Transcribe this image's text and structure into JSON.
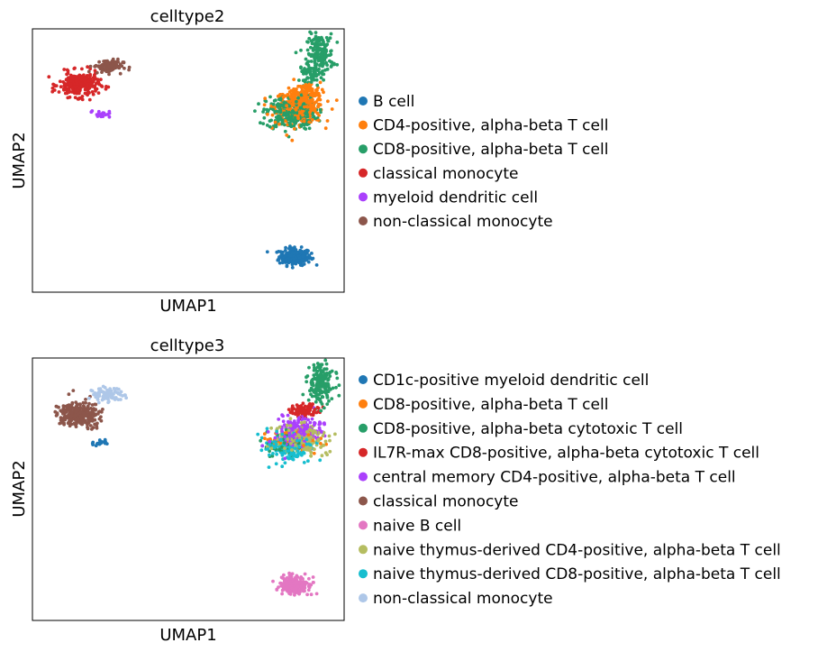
{
  "chart_data": [
    {
      "type": "scatter",
      "title": "celltype2",
      "xlabel": "UMAP1",
      "ylabel": "UMAP2",
      "ticks": false,
      "legend_position": "right",
      "series": [
        {
          "name": "B cell",
          "color": "#1f77b4",
          "clusters": [
            {
              "cx": 7.3,
              "cy": -11.0,
              "sx": 0.8,
              "sy": 0.55,
              "n": 220
            }
          ]
        },
        {
          "name": "CD4-positive, alpha-beta T cell",
          "color": "#ff7f0e",
          "clusters": [
            {
              "cx": 7.6,
              "cy": 3.8,
              "sx": 1.2,
              "sy": 1.1,
              "n": 340
            },
            {
              "cx": 8.3,
              "cy": 5.3,
              "sx": 0.6,
              "sy": 0.6,
              "n": 60
            }
          ]
        },
        {
          "name": "CD8-positive, alpha-beta T cell",
          "color": "#279e68",
          "clusters": [
            {
              "cx": 7.0,
              "cy": 3.2,
              "sx": 1.25,
              "sy": 1.1,
              "n": 300
            },
            {
              "cx": 9.2,
              "cy": 9.0,
              "sx": 0.65,
              "sy": 1.3,
              "n": 170
            },
            {
              "cx": 8.4,
              "cy": 7.2,
              "sx": 0.5,
              "sy": 0.6,
              "n": 50
            }
          ]
        },
        {
          "name": "classical monocyte",
          "color": "#d62728",
          "clusters": [
            {
              "cx": -9.0,
              "cy": 6.0,
              "sx": 1.0,
              "sy": 0.8,
              "n": 280
            }
          ]
        },
        {
          "name": "myeloid dendritic cell",
          "color": "#aa40fc",
          "clusters": [
            {
              "cx": -7.4,
              "cy": 3.1,
              "sx": 0.5,
              "sy": 0.22,
              "n": 20
            }
          ]
        },
        {
          "name": "non-classical monocyte",
          "color": "#8c564b",
          "clusters": [
            {
              "cx": -6.8,
              "cy": 7.8,
              "sx": 0.75,
              "sy": 0.45,
              "n": 90
            }
          ]
        }
      ]
    },
    {
      "type": "scatter",
      "title": "celltype3",
      "xlabel": "UMAP1",
      "ylabel": "UMAP2",
      "ticks": false,
      "legend_position": "right",
      "series": [
        {
          "name": "CD1c-positive myeloid dendritic cell",
          "color": "#1f77b4",
          "clusters": [
            {
              "cx": -7.4,
              "cy": 3.1,
              "sx": 0.5,
              "sy": 0.22,
              "n": 20
            }
          ]
        },
        {
          "name": "CD8-positive, alpha-beta T cell",
          "color": "#ff7f0e",
          "clusters": [
            {
              "cx": 7.2,
              "cy": 3.4,
              "sx": 1.1,
              "sy": 0.9,
              "n": 60
            }
          ]
        },
        {
          "name": "CD8-positive, alpha-beta cytotoxic T cell",
          "color": "#279e68",
          "clusters": [
            {
              "cx": 9.2,
              "cy": 9.0,
              "sx": 0.65,
              "sy": 1.3,
              "n": 170
            },
            {
              "cx": 6.6,
              "cy": 3.0,
              "sx": 0.9,
              "sy": 0.9,
              "n": 60
            }
          ]
        },
        {
          "name": "IL7R-max CD8-positive, alpha-beta cytotoxic T cell",
          "color": "#d62728",
          "clusters": [
            {
              "cx": 8.1,
              "cy": 6.3,
              "sx": 0.7,
              "sy": 0.5,
              "n": 80
            }
          ]
        },
        {
          "name": "central memory CD4-positive, alpha-beta T cell",
          "color": "#aa40fc",
          "clusters": [
            {
              "cx": 7.5,
              "cy": 4.1,
              "sx": 1.15,
              "sy": 1.0,
              "n": 200
            }
          ]
        },
        {
          "name": "classical monocyte",
          "color": "#8c564b",
          "clusters": [
            {
              "cx": -9.0,
              "cy": 6.0,
              "sx": 1.0,
              "sy": 0.8,
              "n": 280
            }
          ]
        },
        {
          "name": "naive B cell",
          "color": "#e377c2",
          "clusters": [
            {
              "cx": 7.3,
              "cy": -11.0,
              "sx": 0.8,
              "sy": 0.55,
              "n": 220
            }
          ]
        },
        {
          "name": "naive thymus-derived CD4-positive, alpha-beta T cell",
          "color": "#b5bd61",
          "clusters": [
            {
              "cx": 7.6,
              "cy": 3.4,
              "sx": 1.2,
              "sy": 1.0,
              "n": 180
            }
          ]
        },
        {
          "name": "naive thymus-derived CD8-positive, alpha-beta T cell",
          "color": "#17becf",
          "clusters": [
            {
              "cx": 6.9,
              "cy": 2.6,
              "sx": 1.1,
              "sy": 0.9,
              "n": 180
            }
          ]
        },
        {
          "name": "non-classical monocyte",
          "color": "#aec7e8",
          "clusters": [
            {
              "cx": -6.8,
              "cy": 7.8,
              "sx": 0.75,
              "sy": 0.45,
              "n": 90
            }
          ]
        }
      ]
    }
  ]
}
